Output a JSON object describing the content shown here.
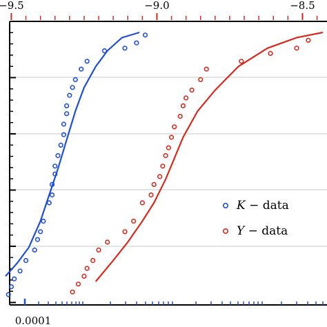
{
  "chart_data": {
    "type": "scatter",
    "top_axis": {
      "ticks": [
        -9.5,
        -9.0,
        -8.5
      ],
      "tick_labels": [
        "−9.5",
        "−9.0",
        "−8.5"
      ],
      "range": [
        -9.52,
        -8.43
      ]
    },
    "bottom_axis": {
      "tick_labels": [
        "0.0001"
      ]
    },
    "legend": {
      "placement": "center-right",
      "entries": [
        {
          "series": "K",
          "var": "K",
          "sep": " − data"
        },
        {
          "series": "Y",
          "var": "Y",
          "sep": " − data"
        }
      ]
    },
    "grid": {
      "horizontal": true,
      "vertical": false
    },
    "ylim": [
      0,
      1
    ],
    "series": [
      {
        "name": "K − data",
        "color": "#1d4fcf",
        "points": [
          {
            "x": -9.51,
            "y": 0.0
          },
          {
            "x": -9.5,
            "y": 0.03
          },
          {
            "x": -9.49,
            "y": 0.06
          },
          {
            "x": -9.47,
            "y": 0.09
          },
          {
            "x": -9.45,
            "y": 0.13
          },
          {
            "x": -9.42,
            "y": 0.17
          },
          {
            "x": -9.41,
            "y": 0.21
          },
          {
            "x": -9.4,
            "y": 0.24
          },
          {
            "x": -9.39,
            "y": 0.28
          },
          {
            "x": -9.37,
            "y": 0.35
          },
          {
            "x": -9.36,
            "y": 0.38
          },
          {
            "x": -9.36,
            "y": 0.42
          },
          {
            "x": -9.35,
            "y": 0.46
          },
          {
            "x": -9.35,
            "y": 0.49
          },
          {
            "x": -9.34,
            "y": 0.53
          },
          {
            "x": -9.33,
            "y": 0.57
          },
          {
            "x": -9.32,
            "y": 0.61
          },
          {
            "x": -9.32,
            "y": 0.65
          },
          {
            "x": -9.31,
            "y": 0.69
          },
          {
            "x": -9.31,
            "y": 0.72
          },
          {
            "x": -9.3,
            "y": 0.76
          },
          {
            "x": -9.29,
            "y": 0.79
          },
          {
            "x": -9.28,
            "y": 0.82
          },
          {
            "x": -9.26,
            "y": 0.86
          },
          {
            "x": -9.24,
            "y": 0.89
          },
          {
            "x": -9.18,
            "y": 0.93
          },
          {
            "x": -9.11,
            "y": 0.94
          },
          {
            "x": -9.07,
            "y": 0.96
          },
          {
            "x": -9.04,
            "y": 0.99
          }
        ],
        "fit": [
          {
            "x": -9.52,
            "y": 0.07
          },
          {
            "x": -9.48,
            "y": 0.12
          },
          {
            "x": -9.44,
            "y": 0.18
          },
          {
            "x": -9.4,
            "y": 0.28
          },
          {
            "x": -9.37,
            "y": 0.38
          },
          {
            "x": -9.34,
            "y": 0.48
          },
          {
            "x": -9.31,
            "y": 0.59
          },
          {
            "x": -9.28,
            "y": 0.7
          },
          {
            "x": -9.25,
            "y": 0.79
          },
          {
            "x": -9.21,
            "y": 0.87
          },
          {
            "x": -9.17,
            "y": 0.93
          },
          {
            "x": -9.12,
            "y": 0.98
          },
          {
            "x": -9.06,
            "y": 1.0
          }
        ]
      },
      {
        "name": "Y − data",
        "color": "#d42a1d",
        "points": [
          {
            "x": -9.29,
            "y": 0.01
          },
          {
            "x": -9.27,
            "y": 0.04
          },
          {
            "x": -9.25,
            "y": 0.07
          },
          {
            "x": -9.24,
            "y": 0.1
          },
          {
            "x": -9.22,
            "y": 0.13
          },
          {
            "x": -9.2,
            "y": 0.17
          },
          {
            "x": -9.17,
            "y": 0.2
          },
          {
            "x": -9.11,
            "y": 0.24
          },
          {
            "x": -9.08,
            "y": 0.28
          },
          {
            "x": -9.05,
            "y": 0.35
          },
          {
            "x": -9.02,
            "y": 0.38
          },
          {
            "x": -9.01,
            "y": 0.42
          },
          {
            "x": -8.99,
            "y": 0.45
          },
          {
            "x": -8.98,
            "y": 0.49
          },
          {
            "x": -8.97,
            "y": 0.53
          },
          {
            "x": -8.96,
            "y": 0.56
          },
          {
            "x": -8.95,
            "y": 0.6
          },
          {
            "x": -8.94,
            "y": 0.64
          },
          {
            "x": -8.92,
            "y": 0.68
          },
          {
            "x": -8.91,
            "y": 0.72
          },
          {
            "x": -8.9,
            "y": 0.75
          },
          {
            "x": -8.88,
            "y": 0.78
          },
          {
            "x": -8.85,
            "y": 0.82
          },
          {
            "x": -8.83,
            "y": 0.86
          },
          {
            "x": -8.71,
            "y": 0.89
          },
          {
            "x": -8.61,
            "y": 0.92
          },
          {
            "x": -8.52,
            "y": 0.94
          },
          {
            "x": -8.48,
            "y": 0.97
          }
        ],
        "fit": [
          {
            "x": -9.21,
            "y": 0.05
          },
          {
            "x": -9.15,
            "y": 0.13
          },
          {
            "x": -9.1,
            "y": 0.2
          },
          {
            "x": -9.05,
            "y": 0.28
          },
          {
            "x": -9.01,
            "y": 0.35
          },
          {
            "x": -8.97,
            "y": 0.44
          },
          {
            "x": -8.94,
            "y": 0.52
          },
          {
            "x": -8.91,
            "y": 0.6
          },
          {
            "x": -8.86,
            "y": 0.7
          },
          {
            "x": -8.8,
            "y": 0.78
          },
          {
            "x": -8.72,
            "y": 0.87
          },
          {
            "x": -8.62,
            "y": 0.94
          },
          {
            "x": -8.52,
            "y": 0.98
          },
          {
            "x": -8.43,
            "y": 1.0
          }
        ]
      }
    ]
  }
}
